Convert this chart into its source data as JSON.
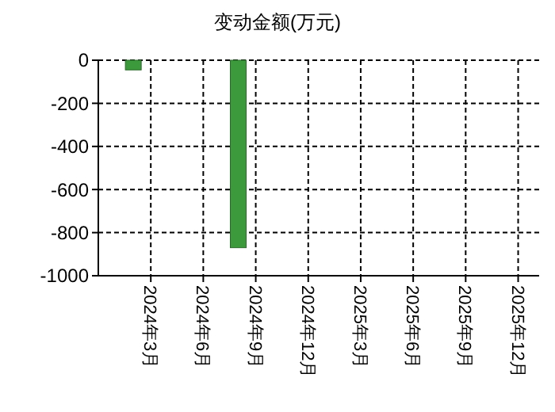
{
  "chart_data": {
    "type": "bar",
    "title": "变动金额(万元)",
    "categories": [
      "2024年3月",
      "2024年6月",
      "2024年9月",
      "2024年12月",
      "2025年3月",
      "2025年6月",
      "2025年9月",
      "2025年12月"
    ],
    "values": [
      -45,
      null,
      -870,
      null,
      null,
      null,
      null,
      null
    ],
    "color": "#3c9a3c",
    "ylim": [
      -1000,
      0
    ],
    "yticks": [
      -1000,
      -800,
      -600,
      -400,
      -200,
      0
    ],
    "grid": true
  }
}
